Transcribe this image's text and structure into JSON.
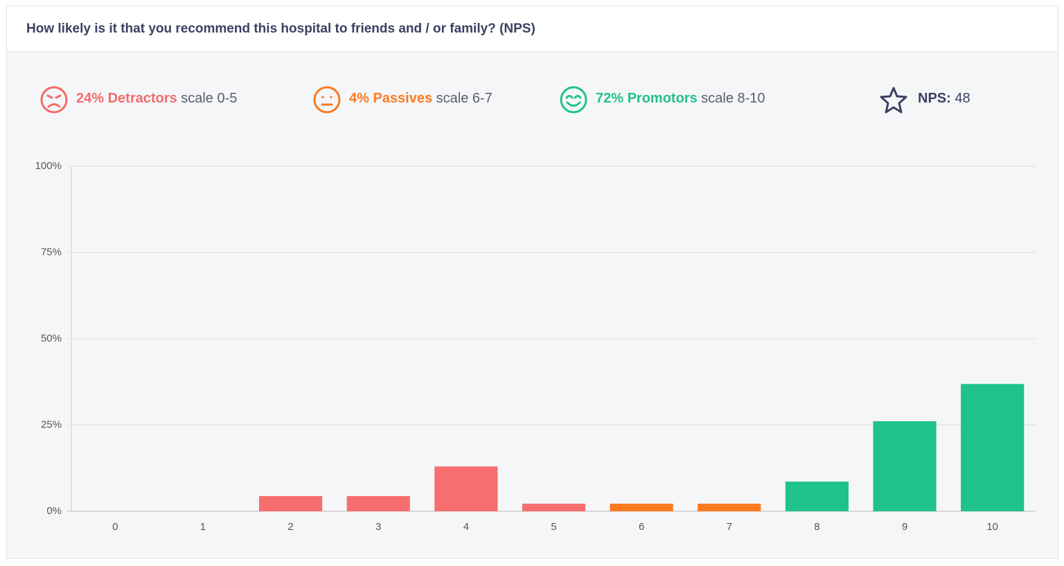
{
  "header": {
    "title": "How likely is it that you recommend this hospital to friends and / or family? (NPS)"
  },
  "summary": [
    {
      "percent": "24%",
      "label": "Detractors",
      "scale": "scale 0-5",
      "color": "#f46a6a"
    },
    {
      "percent": "4%",
      "label": "Passives",
      "scale": "scale 6-7",
      "color": "#fb7a1e"
    },
    {
      "percent": "72%",
      "label": "Promotors",
      "scale": "scale 8-10",
      "color": "#20c28c"
    }
  ],
  "nps": {
    "label": "NPS:",
    "value": 48,
    "color": "#3a4163"
  },
  "chart_data": {
    "type": "bar",
    "categories": [
      "0",
      "1",
      "2",
      "3",
      "4",
      "5",
      "6",
      "7",
      "8",
      "9",
      "10"
    ],
    "values": [
      0,
      0,
      4.4,
      4.4,
      13,
      2.2,
      2.2,
      2.2,
      8.6,
      26.1,
      36.9
    ],
    "colors": [
      "#f76e6e",
      "#f76e6e",
      "#f76e6e",
      "#f76e6e",
      "#f76e6e",
      "#f76e6e",
      "#fb7a1e",
      "#fb7a1e",
      "#20c28c",
      "#20c28c",
      "#20c28c"
    ],
    "ylim": [
      0,
      100
    ],
    "yticks": [
      {
        "value": 0,
        "label": "0%"
      },
      {
        "value": 25,
        "label": "25%"
      },
      {
        "value": 50,
        "label": "50%"
      },
      {
        "value": 75,
        "label": "75%"
      },
      {
        "value": 100,
        "label": "100%"
      }
    ],
    "grid": true
  }
}
